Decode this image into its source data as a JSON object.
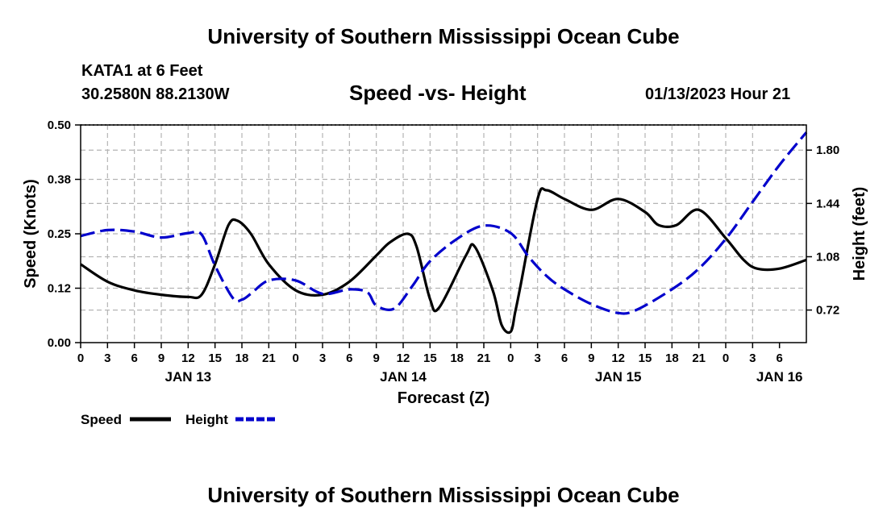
{
  "header": {
    "title": "University of Southern Mississippi Ocean Cube",
    "station": "KATA1 at 6 Feet",
    "coordinates": "30.2580N  88.2130W",
    "timestamp": "01/13/2023 Hour 21"
  },
  "footer": {
    "title": "University of Southern Mississippi Ocean Cube"
  },
  "colors": {
    "speed": "#000000",
    "height": "#0000cc",
    "grid": "#b4b4b4"
  },
  "chart_data": {
    "type": "line",
    "title": "Speed -vs- Height",
    "xlabel": "Forecast (Z)",
    "ylabel_left": "Speed (Knots)",
    "ylabel_right": "Height (feet)",
    "x_hours_range": [
      0,
      81
    ],
    "x_tick_step_hours": 3,
    "x_tick_labels": [
      "0",
      "3",
      "6",
      "9",
      "12",
      "15",
      "18",
      "21",
      "0",
      "3",
      "6",
      "9",
      "12",
      "15",
      "18",
      "21",
      "0",
      "3",
      "6",
      "9",
      "12",
      "15",
      "18",
      "21",
      "0",
      "3",
      "6"
    ],
    "date_labels": [
      {
        "hour": 12,
        "label": "JAN 13"
      },
      {
        "hour": 36,
        "label": "JAN 14"
      },
      {
        "hour": 60,
        "label": "JAN 15"
      },
      {
        "hour": 78,
        "label": "JAN 16"
      }
    ],
    "y_left": {
      "range": [
        0,
        0.5
      ],
      "ticks": [
        "0.00",
        "0.12",
        "0.25",
        "0.38",
        "0.50"
      ]
    },
    "y_right": {
      "range": [
        0.5,
        1.97
      ],
      "ticks": [
        "0.72",
        "1.08",
        "1.44",
        "1.80"
      ],
      "tick_values": [
        0.72,
        1.08,
        1.44,
        1.8
      ]
    },
    "series": [
      {
        "name": "Speed",
        "axis": "left",
        "style": "solid",
        "x": [
          0,
          3,
          6,
          9,
          12,
          13.5,
          15,
          16.5,
          17.5,
          19,
          21,
          24,
          27,
          30,
          33,
          34.5,
          36.5,
          37.5,
          39,
          40,
          43,
          44,
          46,
          47,
          48,
          48.5,
          49,
          51,
          52,
          54,
          57,
          60,
          63,
          64.5,
          66.5,
          69,
          72,
          74,
          75.5,
          78,
          81
        ],
        "values": [
          0.18,
          0.14,
          0.12,
          0.11,
          0.105,
          0.11,
          0.18,
          0.27,
          0.28,
          0.25,
          0.18,
          0.12,
          0.11,
          0.14,
          0.2,
          0.23,
          0.25,
          0.22,
          0.1,
          0.08,
          0.2,
          0.22,
          0.12,
          0.04,
          0.025,
          0.07,
          0.12,
          0.33,
          0.35,
          0.33,
          0.305,
          0.33,
          0.3,
          0.27,
          0.27,
          0.305,
          0.24,
          0.19,
          0.17,
          0.17,
          0.19
        ]
      },
      {
        "name": "Height",
        "axis": "right",
        "style": "dashed",
        "x": [
          0,
          3,
          6,
          9,
          12,
          13.5,
          15,
          17,
          18,
          19,
          21,
          24,
          27,
          30,
          32,
          33,
          35,
          37,
          39,
          42,
          45,
          48,
          50,
          52,
          54,
          57,
          60,
          62,
          66,
          69,
          72,
          75,
          78,
          81
        ],
        "values": [
          1.22,
          1.26,
          1.25,
          1.21,
          1.24,
          1.23,
          1.02,
          0.8,
          0.79,
          0.83,
          0.92,
          0.92,
          0.83,
          0.86,
          0.84,
          0.75,
          0.73,
          0.88,
          1.05,
          1.2,
          1.29,
          1.24,
          1.08,
          0.95,
          0.86,
          0.76,
          0.7,
          0.72,
          0.86,
          1.0,
          1.2,
          1.45,
          1.7,
          1.92
        ]
      }
    ],
    "legend": [
      {
        "name": "Speed",
        "style": "solid"
      },
      {
        "name": "Height",
        "style": "dashed"
      }
    ]
  }
}
